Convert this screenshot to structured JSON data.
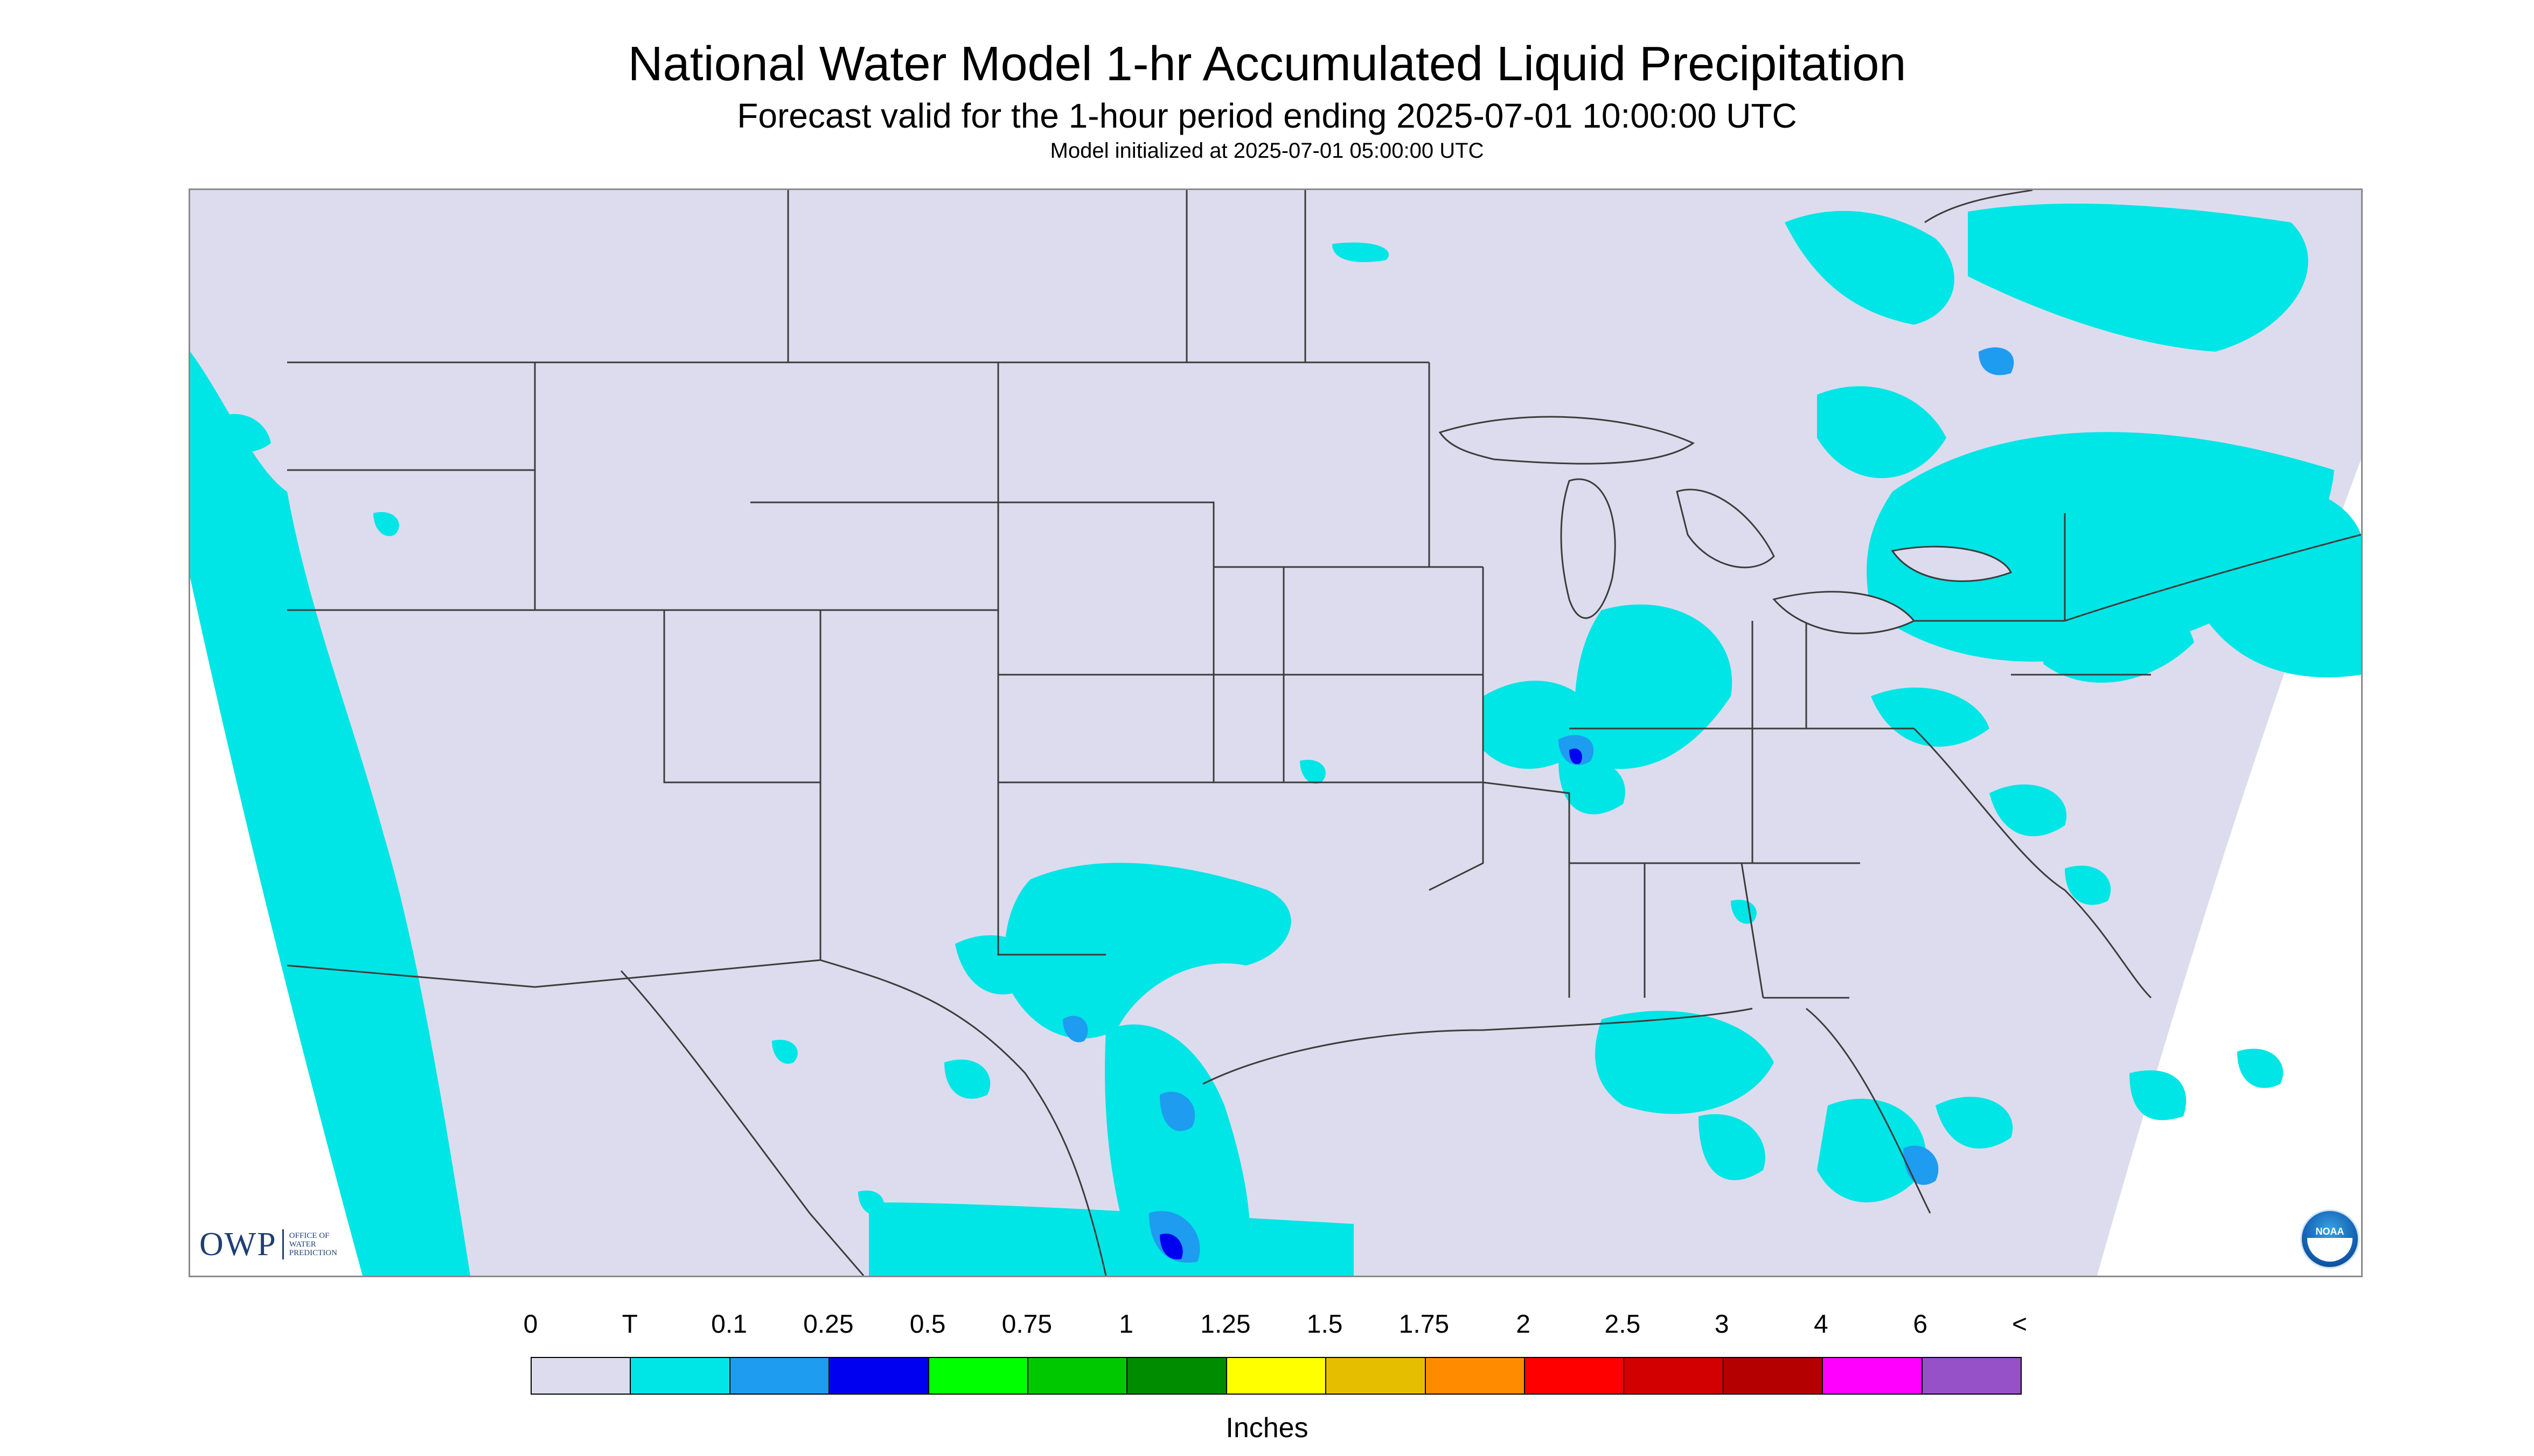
{
  "title": "National Water Model 1-hr Accumulated Liquid Precipitation",
  "subtitle": "Forecast valid for the 1-hour period ending 2025-07-01 10:00:00 UTC",
  "init_line": "Model initialized at 2025-07-01 05:00:00 UTC",
  "logos": {
    "owp_mark": "OWP",
    "owp_text": [
      "OFFICE OF",
      "WATER",
      "PREDICTION"
    ],
    "noaa": "NOAA",
    "noaa_icon": "noaa-logo-icon"
  },
  "legend": {
    "labels": [
      "0",
      "T",
      "0.1",
      "0.25",
      "0.5",
      "0.75",
      "1",
      "1.25",
      "1.5",
      "1.75",
      "2",
      "2.5",
      "3",
      "4",
      "6",
      "<"
    ],
    "colors": [
      "#dcdcee",
      "#00e5e5",
      "#1e9cf0",
      "#0000f0",
      "#00ff00",
      "#00c800",
      "#008c00",
      "#ffff00",
      "#e6be00",
      "#ff8c00",
      "#ff0000",
      "#d20000",
      "#b40000",
      "#ff00ff",
      "#9650c8"
    ],
    "units": "Inches"
  },
  "map_colors": {
    "background_land": "#dcdcee",
    "trace": "#00e5e5",
    "light": "#1e9cf0",
    "moderate": "#0000f0",
    "boundary": "#3c3c3c"
  }
}
